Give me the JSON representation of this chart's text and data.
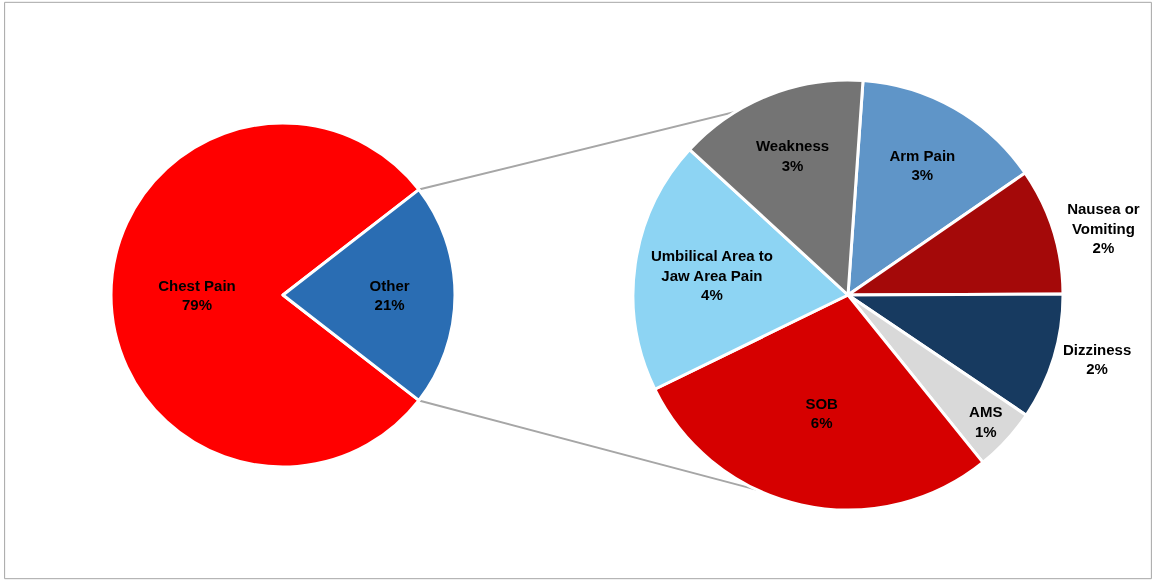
{
  "chart_data": [
    {
      "type": "pie",
      "categories": [
        "Chest Pain",
        "Other"
      ],
      "values": [
        79,
        21
      ],
      "colors": [
        "#ff0000",
        "#2a6db3"
      ],
      "value_labels": [
        "79%",
        "21%"
      ]
    },
    {
      "type": "pie",
      "categories": [
        "Arm Pain",
        "Nausea or Vomiting",
        "Dizziness",
        "AMS",
        "SOB",
        "Umbilical Area to Jaw Area Pain",
        "Weakness"
      ],
      "values": [
        3,
        2,
        2,
        1,
        6,
        4,
        3
      ],
      "colors": [
        "#5f95c8",
        "#a40909",
        "#173a60",
        "#d9d9d9",
        "#d60000",
        "#8dd4f3",
        "#747474"
      ],
      "value_labels": [
        "3%",
        "2%",
        "2%",
        "1%",
        "6%",
        "4%",
        "3%"
      ]
    }
  ]
}
